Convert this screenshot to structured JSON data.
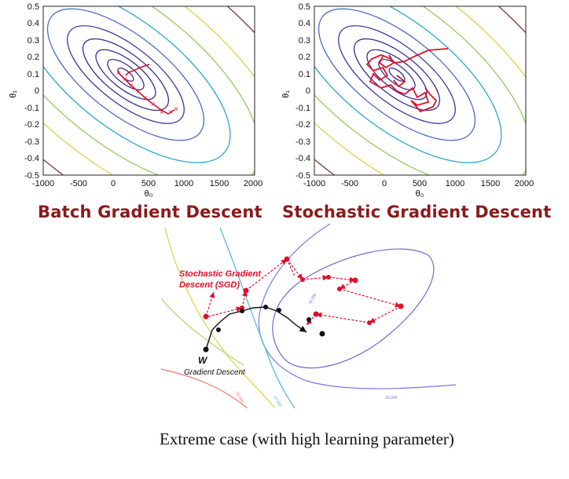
{
  "colors": {
    "title": "#8b1a1a",
    "path_red": "#e0102a",
    "path_black": "#111111",
    "contour_inner": "#3b2f8f",
    "contour_mid": "#4a7fc0",
    "contour_cyan": "#2aa8c8",
    "contour_green": "#8ccf5a",
    "contour_yellow": "#d9d24a",
    "contour_brown": "#7a3a2a"
  },
  "plots": [
    {
      "title": "Batch Gradient Descent",
      "xlabel": "θ₀",
      "ylabel": "θ₁",
      "xticks": [
        "-1000",
        "-500",
        "0",
        "500",
        "1000",
        "1500",
        "2000"
      ],
      "yticks": [
        "0.5",
        "0.4",
        "0.3",
        "0.2",
        "0.1",
        "0",
        "-0.1",
        "-0.2",
        "-0.3",
        "-0.4",
        "-0.5"
      ]
    },
    {
      "title": "Stochastic Gradient Descent",
      "xlabel": "θ₀",
      "ylabel": "θ₁",
      "xticks": [
        "-1000",
        "-500",
        "0",
        "500",
        "1000",
        "1500",
        "2000"
      ],
      "yticks": [
        "0.5",
        "0.4",
        "0.3",
        "0.2",
        "0.1",
        "0",
        "-0.1",
        "-0.2",
        "-0.3",
        "-0.4",
        "-0.5"
      ]
    }
  ],
  "extreme": {
    "sgd_label_line1": "Stochastic Gradient",
    "sgd_label_line2": "Descent (SGD)",
    "w_label": "W",
    "gd_label": "Gradient Descent",
    "contour_labels": [
      "16.000",
      "16.000",
      "24.000",
      "40.000",
      "56.000"
    ]
  },
  "caption": "Extreme case (with high learning parameter)"
}
